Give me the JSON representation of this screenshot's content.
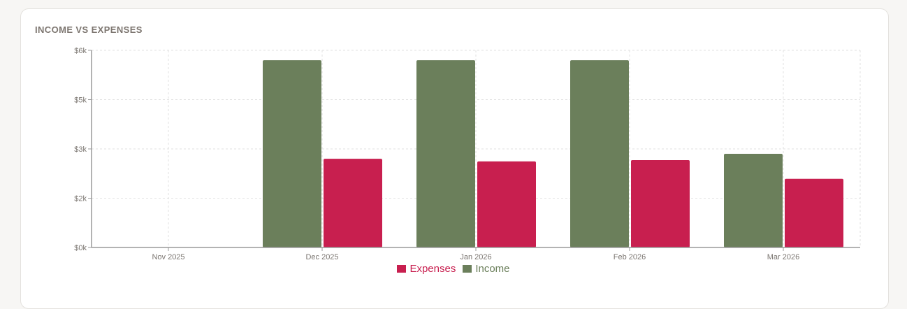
{
  "card": {
    "title": "INCOME VS EXPENSES"
  },
  "colors": {
    "income": "#6b7f5b",
    "expenses": "#c81f4f",
    "axis": "#9a9a9a",
    "grid": "#e2e2e2",
    "tick_text": "#7a7570"
  },
  "legend": {
    "items": [
      {
        "label": "Expenses",
        "color": "#c81f4f"
      },
      {
        "label": "Income",
        "color": "#6b7f5b"
      }
    ]
  },
  "chart_data": {
    "type": "bar",
    "title": "INCOME VS EXPENSES",
    "xlabel": "",
    "ylabel": "",
    "categories": [
      "Nov 2025",
      "Dec 2025",
      "Jan 2026",
      "Feb 2026",
      "Mar 2026"
    ],
    "series": [
      {
        "name": "Income",
        "color": "#6b7f5b",
        "values": [
          0,
          5700,
          5700,
          5700,
          2850
        ]
      },
      {
        "name": "Expenses",
        "color": "#c81f4f",
        "values": [
          0,
          2700,
          2620,
          2660,
          2090
        ]
      }
    ],
    "ylim": [
      0,
      6000
    ],
    "yticks": [
      0,
      1500,
      3000,
      4500,
      6000
    ],
    "ytick_labels": [
      "$0k",
      "$2k",
      "$3k",
      "$5k",
      "$6k"
    ],
    "grid": true,
    "legend_position": "bottom"
  }
}
